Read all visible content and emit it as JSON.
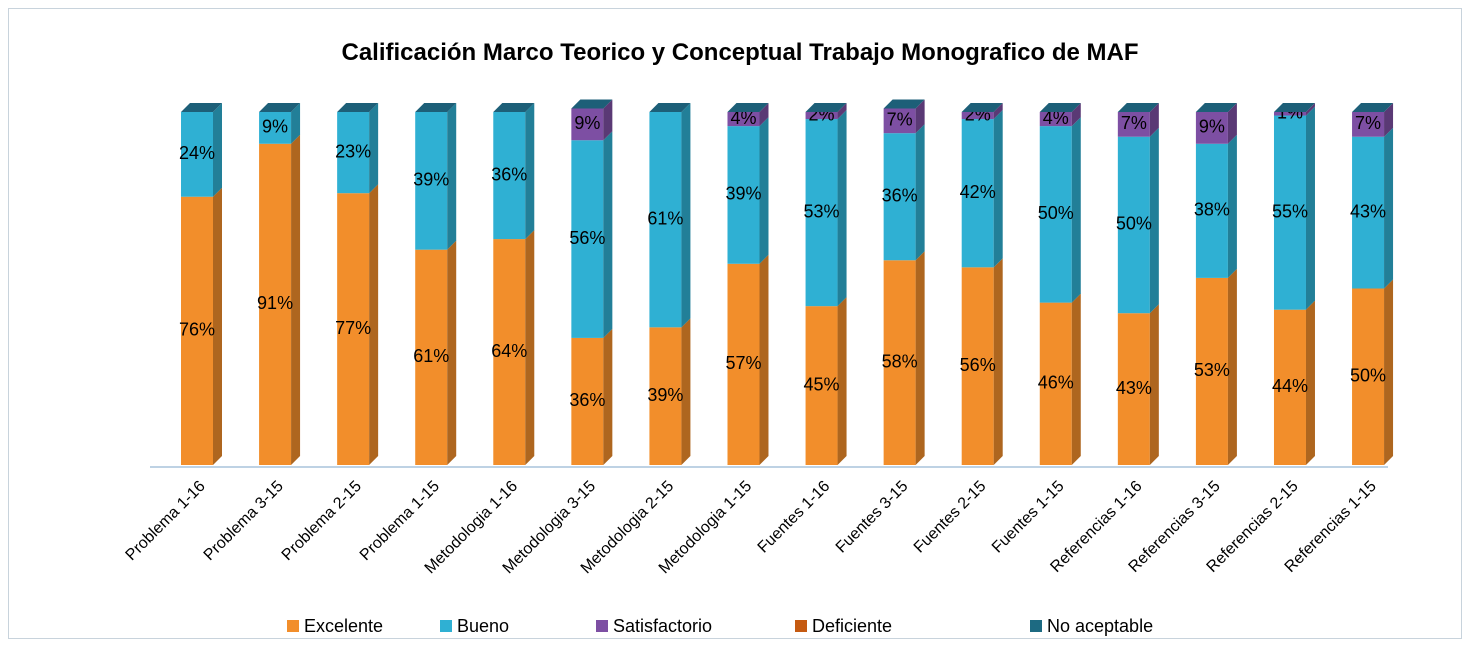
{
  "chart_data": {
    "type": "bar",
    "stacked": true,
    "title": "Calificación Marco Teorico y Conceptual Trabajo Monografico de MAF",
    "categories": [
      "Problema 1-16",
      "Problema 3-15",
      "Problema 2-15",
      "Problema 1-15",
      "Metodologia  1-16",
      "Metodologia 3-15",
      "Metodologia 2-15",
      "Metodologia 1-15",
      "Fuentes  1-16",
      "Fuentes 3-15",
      "Fuentes 2-15",
      "Fuentes 1-15",
      "Referencias  1-16",
      "Referencias 3-15",
      "Referencias 2-15",
      "Referencias 1-15"
    ],
    "series": [
      {
        "name": "Excelente",
        "color": "#f28e2b",
        "values": [
          76,
          91,
          77,
          61,
          64,
          36,
          39,
          57,
          45,
          58,
          56,
          46,
          43,
          53,
          44,
          50
        ]
      },
      {
        "name": "Bueno",
        "color": "#2fb0d3",
        "values": [
          24,
          9,
          23,
          39,
          36,
          56,
          61,
          39,
          53,
          36,
          42,
          50,
          50,
          38,
          55,
          43
        ]
      },
      {
        "name": "Satisfactorio",
        "color": "#7d4fa3",
        "values": [
          null,
          null,
          null,
          null,
          null,
          9,
          null,
          4,
          2,
          7,
          2,
          4,
          7,
          9,
          1,
          7
        ]
      },
      {
        "name": "Deficiente",
        "color": "#c55a11",
        "values": [
          null,
          null,
          null,
          null,
          null,
          null,
          null,
          null,
          null,
          null,
          null,
          null,
          null,
          null,
          null,
          null
        ]
      },
      {
        "name": "No aceptable",
        "color": "#1d6a82",
        "values": [
          null,
          null,
          null,
          null,
          null,
          null,
          null,
          null,
          null,
          null,
          null,
          null,
          null,
          null,
          null,
          null
        ]
      }
    ],
    "ylim": [
      0,
      100
    ]
  }
}
